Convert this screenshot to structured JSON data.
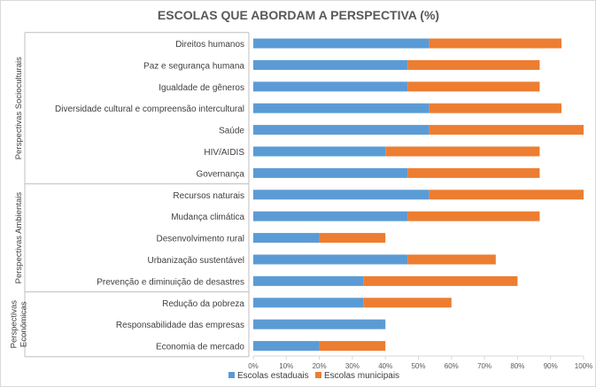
{
  "chart_data": {
    "type": "bar",
    "orientation": "horizontal",
    "stacked": true,
    "title": "ESCOLAS QUE ABORDAM A PERSPECTIVA (%)",
    "categories": [
      "Direitos humanos",
      "Paz e segurança humana",
      "Igualdade de gêneros",
      "Diversidade cultural e compreensão intercultural",
      "Saúde",
      "HIV/AIDIS",
      "Governança",
      "Recursos naturais",
      "Mudança climática",
      "Desenvolvimento rural",
      "Urbanização sustentável",
      "Prevenção e diminuição de desastres",
      "Redução da pobreza",
      "Responsabilidade das empresas",
      "Economia de mercado"
    ],
    "groups": [
      {
        "label": "Perspectivas Socioculturais",
        "count": 7
      },
      {
        "label": "Perspectivas Ambientais",
        "count": 5
      },
      {
        "label": "Perspectivas Econômicas",
        "count": 3
      }
    ],
    "series": [
      {
        "name": "Escolas estaduais",
        "values": [
          53.3,
          46.7,
          46.7,
          53.3,
          53.3,
          40,
          46.7,
          53.3,
          46.7,
          20,
          46.7,
          33.3,
          33.3,
          40,
          20
        ]
      },
      {
        "name": "Escolas municipais",
        "values": [
          40,
          40,
          40,
          40,
          46.7,
          46.7,
          40,
          46.7,
          40,
          20,
          26.7,
          46.7,
          26.7,
          0,
          20
        ]
      }
    ],
    "xlim": [
      0,
      100
    ],
    "xticks": [
      "0%",
      "10%",
      "20%",
      "30%",
      "40%",
      "50%",
      "60%",
      "70%",
      "80%",
      "90%",
      "100%"
    ],
    "grid": false,
    "legend_position": "bottom",
    "colors": {
      "Escolas estaduais": "#5b9bd5",
      "Escolas municipais": "#ed7d31"
    }
  }
}
